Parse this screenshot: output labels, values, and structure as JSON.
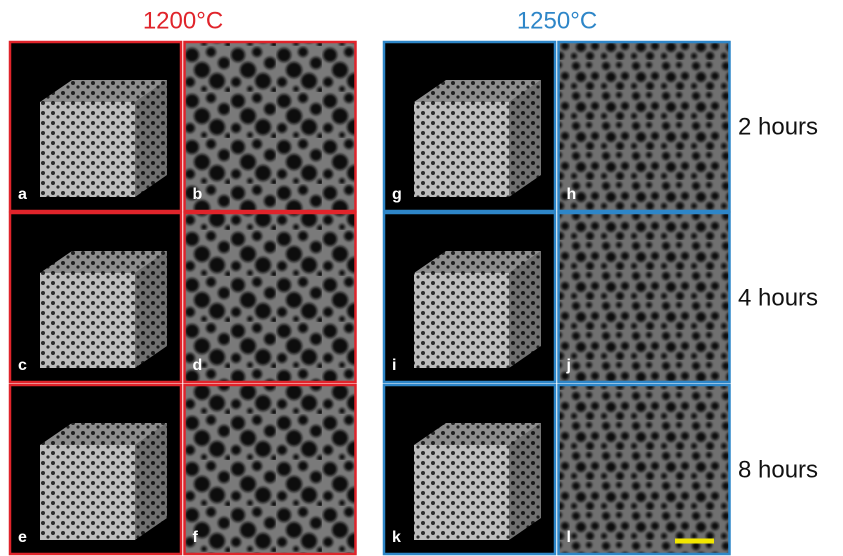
{
  "groups": [
    {
      "title": "1200°C",
      "panels": [
        [
          "a",
          "b"
        ],
        [
          "c",
          "d"
        ],
        [
          "e",
          "f"
        ]
      ]
    },
    {
      "title": "1250°C",
      "panels": [
        [
          "g",
          "h"
        ],
        [
          "i",
          "j"
        ],
        [
          "k",
          "l"
        ]
      ]
    }
  ],
  "rows": [
    "2 hours",
    "4 hours",
    "8 hours"
  ]
}
